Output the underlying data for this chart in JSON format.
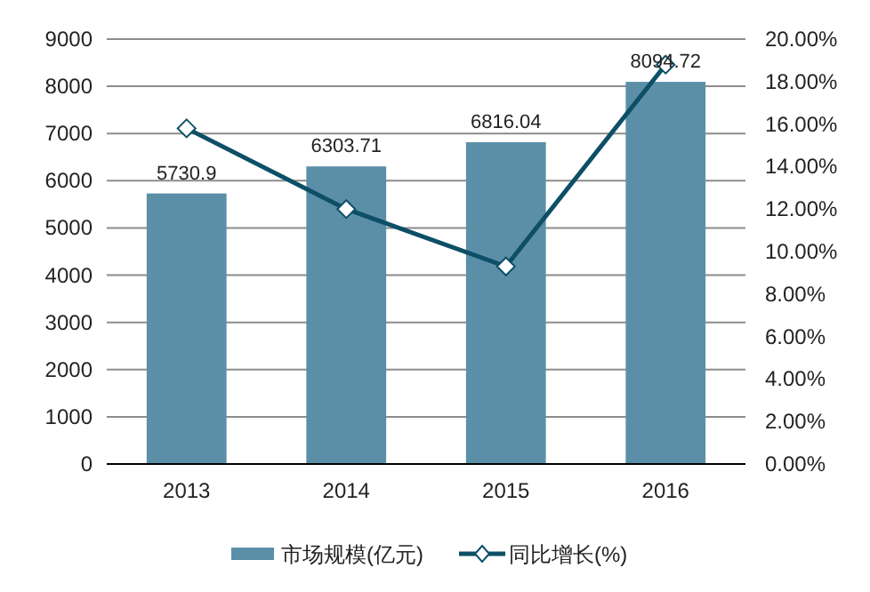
{
  "chart_data": {
    "type": "bar",
    "categories": [
      "2013",
      "2014",
      "2015",
      "2016"
    ],
    "series": [
      {
        "name": "市场规模(亿元)",
        "color": "#5b8fa8",
        "values": [
          5730.9,
          6303.71,
          6816.04,
          8094.72
        ],
        "value_labels": [
          "5730.9",
          "6303.71",
          "6816.04",
          "8094.72"
        ]
      },
      {
        "name": "同比增长(%)",
        "type": "line",
        "axis": "y2",
        "color": "#0d4f66",
        "marker": "diamond",
        "values": [
          15.8,
          12.0,
          9.3,
          18.8
        ]
      }
    ],
    "ylim": [
      0,
      9000
    ],
    "yticks": [
      0,
      1000,
      2000,
      3000,
      4000,
      5000,
      6000,
      7000,
      8000,
      9000
    ],
    "y2lim": [
      0,
      20
    ],
    "y2ticks": [
      {
        "value": 0,
        "label": "0.00%"
      },
      {
        "value": 2,
        "label": "2.00%"
      },
      {
        "value": 4,
        "label": "4.00%"
      },
      {
        "value": 6,
        "label": "6.00%"
      },
      {
        "value": 8,
        "label": "8.00%"
      },
      {
        "value": 10,
        "label": "10.00%"
      },
      {
        "value": 12,
        "label": "12.00%"
      },
      {
        "value": 14,
        "label": "14.00%"
      },
      {
        "value": 16,
        "label": "16.00%"
      },
      {
        "value": 18,
        "label": "18.00%"
      },
      {
        "value": 20,
        "label": "20.00%"
      }
    ],
    "grid": "y",
    "legend": "bottom"
  }
}
